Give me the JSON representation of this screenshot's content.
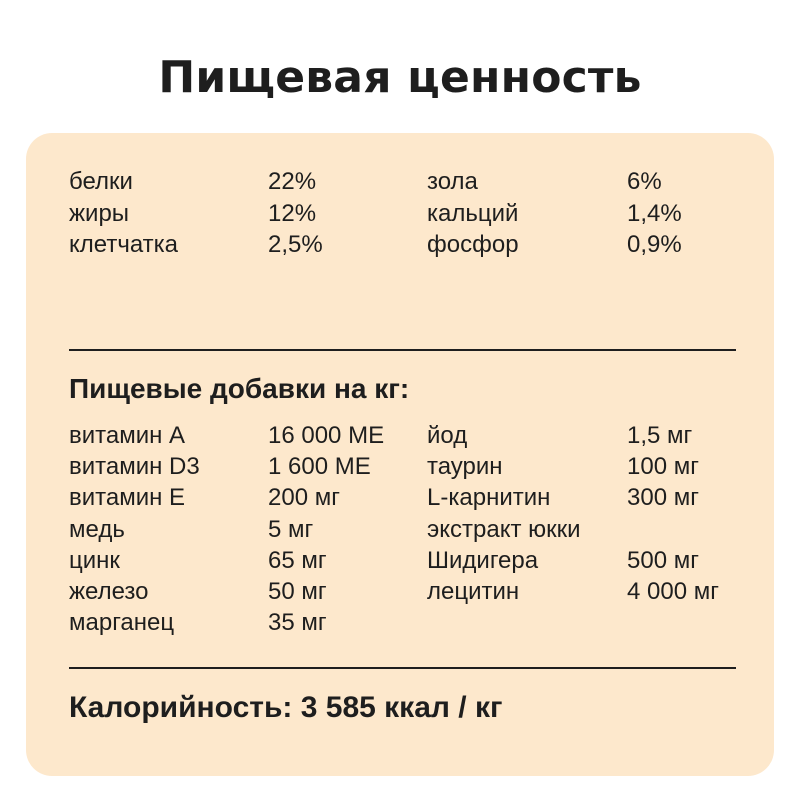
{
  "title": "Пищевая ценность",
  "composition": [
    {
      "name": "белки",
      "value": "22%",
      "name2": "зола",
      "value2": "6%"
    },
    {
      "name": "жиры",
      "value": "12%",
      "name2": "кальций",
      "value2": "1,4%"
    },
    {
      "name": "клетчатка",
      "value": "2,5%",
      "name2": "фосфор",
      "value2": "0,9%"
    }
  ],
  "additives_title": "Пищевые добавки на кг:",
  "additives": [
    {
      "name": "витамин А",
      "value": "16 000 МЕ",
      "name2": "йод",
      "value2": "1,5 мг"
    },
    {
      "name": "витамин D3",
      "value": "1 600 МЕ",
      "name2": "таурин",
      "value2": "100 мг"
    },
    {
      "name": "витамин Е",
      "value": "200 мг",
      "name2": "L-карнитин",
      "value2": "300 мг"
    },
    {
      "name": "медь",
      "value": "5 мг",
      "name2": "экстракт юкки",
      "value2": ""
    },
    {
      "name": "цинк",
      "value": "65 мг",
      "name2": "Шидигера",
      "value2": "500 мг"
    },
    {
      "name": "железо",
      "value": "50 мг",
      "name2": "лецитин",
      "value2": "4 000 мг"
    },
    {
      "name": "марганец",
      "value": "35 мг",
      "name2": "",
      "value2": ""
    }
  ],
  "calories": "Калорийность: 3 585 ккал / кг",
  "colors": {
    "card_bg": "#fde8cc",
    "text": "#1e1e1e"
  }
}
